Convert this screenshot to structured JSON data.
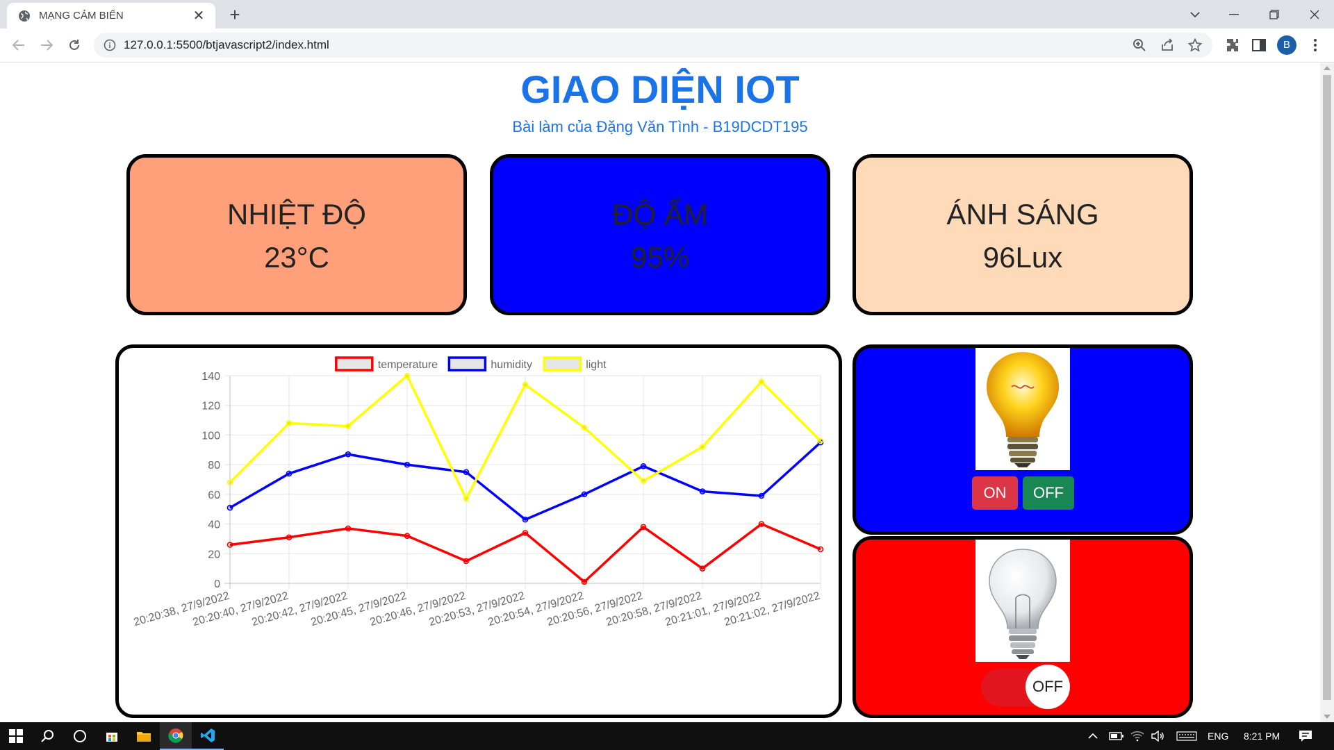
{
  "browser": {
    "tab_title": "MẠNG CẢM BIẾN",
    "url": "127.0.0.1:5500/btjavascript2/index.html",
    "avatar_letter": "B"
  },
  "page": {
    "title": "GIAO DIỆN IOT",
    "subtitle": "Bài làm của Đặng Văn Tình - B19DCDT195"
  },
  "cards": [
    {
      "label": "NHIỆT ĐỘ",
      "value": "23°C",
      "bg": "#ffa07a"
    },
    {
      "label": "ĐỘ ẨM",
      "value": "95%",
      "bg": "#0000ff"
    },
    {
      "label": "ÁNH SÁNG",
      "value": "96Lux",
      "bg": "#ffdab9"
    }
  ],
  "chart_data": {
    "type": "line",
    "categories": [
      "20:20:38, 27/9/2022",
      "20:20:40, 27/9/2022",
      "20:20:42, 27/9/2022",
      "20:20:45, 27/9/2022",
      "20:20:46, 27/9/2022",
      "20:20:53, 27/9/2022",
      "20:20:54, 27/9/2022",
      "20:20:56, 27/9/2022",
      "20:20:58, 27/9/2022",
      "20:21:01, 27/9/2022",
      "20:21:02, 27/9/2022"
    ],
    "series": [
      {
        "name": "temperature",
        "color": "#ff0000",
        "values": [
          26,
          31,
          37,
          32,
          15,
          34,
          1,
          38,
          10,
          40,
          23
        ]
      },
      {
        "name": "humidity",
        "color": "#0000ff",
        "values": [
          51,
          74,
          87,
          80,
          75,
          43,
          60,
          79,
          62,
          59,
          95
        ]
      },
      {
        "name": "light",
        "color": "#ffff00",
        "values": [
          68,
          108,
          106,
          140,
          57,
          134,
          105,
          69,
          92,
          136,
          96
        ]
      }
    ],
    "ylim": [
      0,
      140
    ],
    "yticks": [
      "0",
      "20",
      "40",
      "60",
      "80",
      "100",
      "120",
      "140"
    ],
    "legend_position": "top",
    "grid": true
  },
  "lamp1": {
    "bg": "#0000ff",
    "on_label": "ON",
    "off_label": "OFF",
    "on_color": "#dc3545",
    "off_color": "#198754"
  },
  "lamp2": {
    "bg": "#ff0000",
    "toggle_label": "OFF"
  },
  "taskbar": {
    "language": "ENG",
    "time": "8:21 PM"
  }
}
